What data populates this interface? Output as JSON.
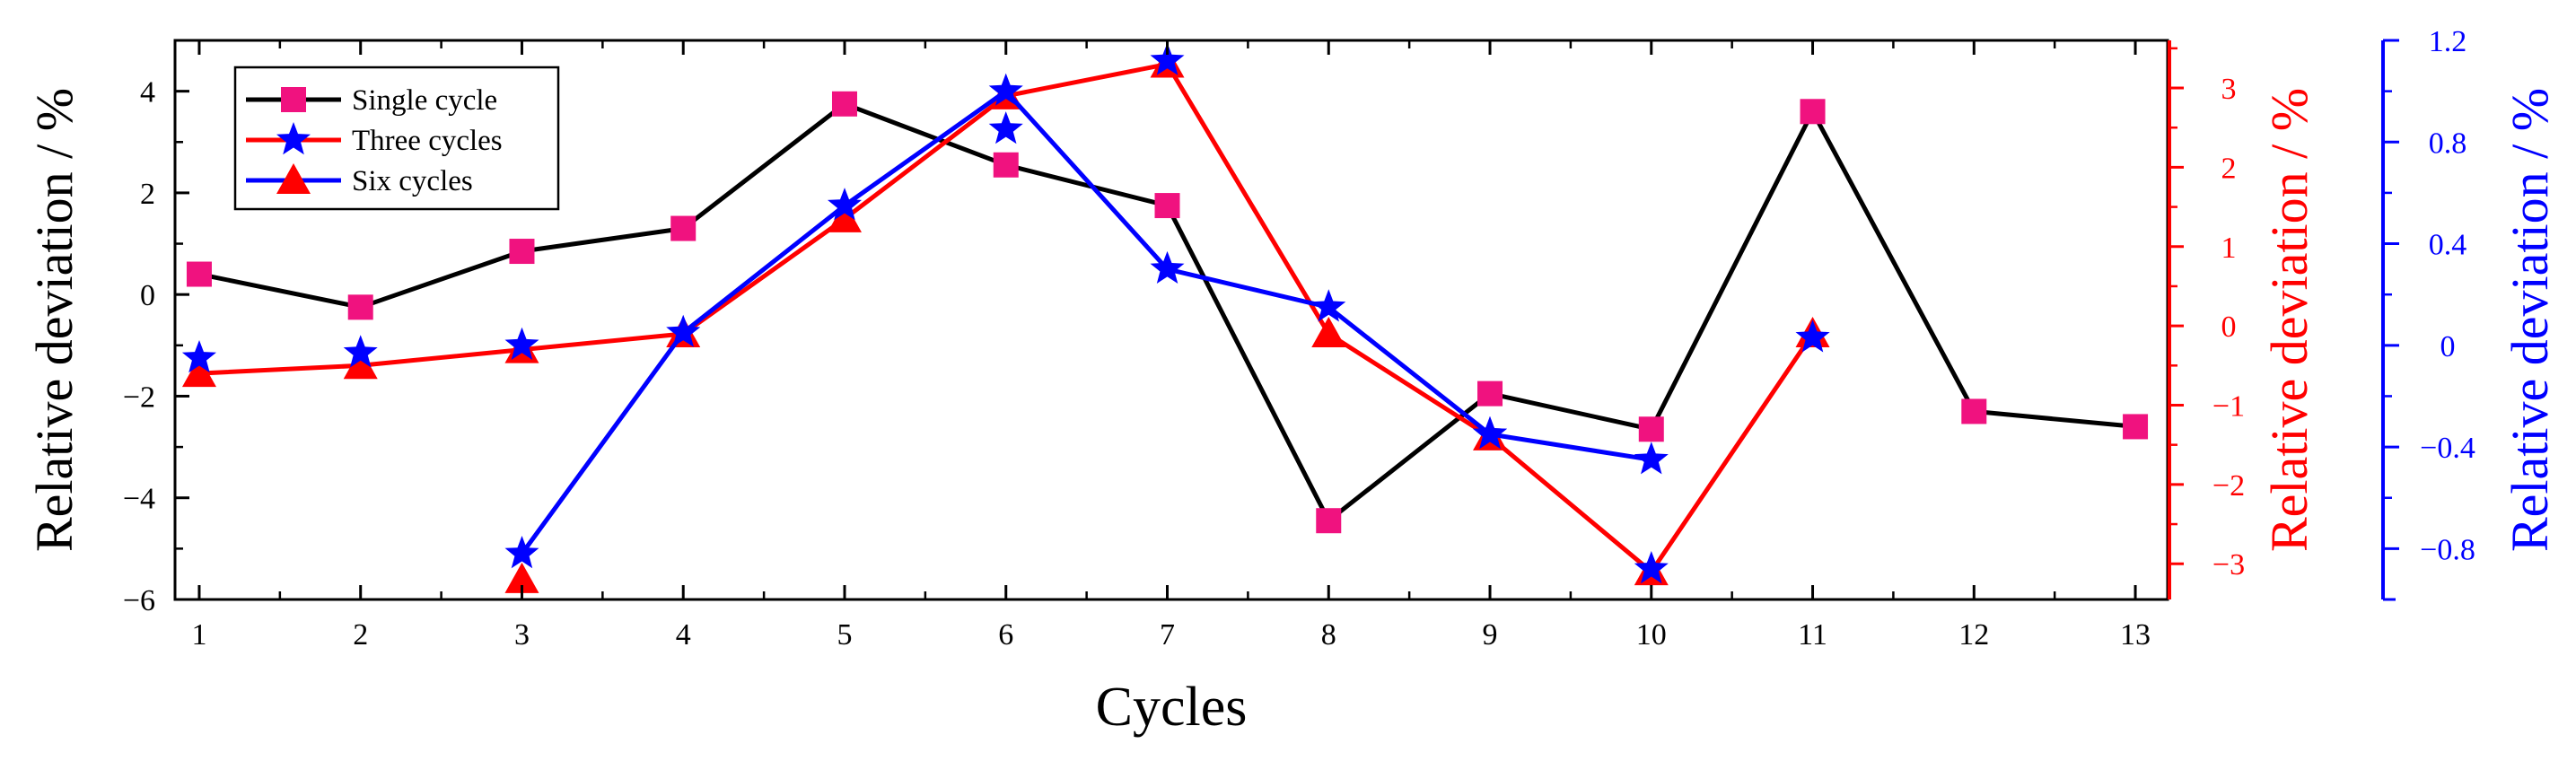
{
  "chart_data": {
    "type": "line",
    "xlabel": "Cycles",
    "x_ticks": [
      1,
      2,
      3,
      4,
      5,
      6,
      7,
      8,
      9,
      10,
      11,
      12,
      13
    ],
    "xlim": [
      0.85,
      13.2
    ],
    "y_axes": {
      "left": {
        "label": "Relative deviation / %",
        "ylim": [
          -6,
          5
        ],
        "ticks": [
          -6,
          -4,
          -2,
          0,
          2,
          4
        ],
        "color": "#000000"
      },
      "red": {
        "label": "Relative deviation / %",
        "ylim": [
          -3.45,
          3.6
        ],
        "ticks": [
          -3,
          -2,
          -1,
          0,
          1,
          2,
          3
        ],
        "color": "#ff0000"
      },
      "blue": {
        "label": "Relative deviation / %",
        "ylim": [
          -1.0,
          1.2
        ],
        "ticks": [
          -0.8,
          -0.4,
          0,
          0.4,
          0.8,
          1.2
        ],
        "color": "#0000ff",
        "tick_labels": [
          "−0.8",
          "−0.4",
          "0",
          "0.4",
          "0.8",
          "1.2"
        ]
      }
    },
    "left_tick_labels": [
      "−6",
      "−4",
      "−2",
      "0",
      "2",
      "4"
    ],
    "red_tick_labels": [
      "−3",
      "−2",
      "−1",
      "0",
      "1",
      "2",
      "3"
    ],
    "legend_position": "top-left",
    "series": [
      {
        "name": "Single cycle",
        "axis": "left",
        "line_color": "#000000",
        "marker": "square",
        "marker_color": "#f0127f",
        "x": [
          1,
          2,
          3,
          4,
          5,
          6,
          7,
          8,
          9,
          10,
          11,
          12,
          13
        ],
        "values": [
          0.4,
          -0.25,
          0.85,
          1.3,
          3.75,
          2.55,
          1.75,
          -4.45,
          -1.95,
          -2.65,
          3.6,
          -2.3,
          -2.6
        ]
      },
      {
        "name": "Three cycles",
        "axis": "red",
        "line_color": "#ff0000",
        "marker": "triangle",
        "marker_color": "#ff0000",
        "x": [
          1,
          2,
          3,
          4,
          5,
          6,
          7,
          8,
          9,
          10,
          11
        ],
        "values": [
          -0.6,
          -0.5,
          -0.3,
          -0.1,
          1.35,
          2.9,
          3.3,
          -0.1,
          -1.4,
          -3.1,
          -0.1
        ]
      },
      {
        "name": "Six cycles",
        "axis": "blue",
        "line_color": "#0000ff",
        "marker": "star",
        "marker_color": "#0000ff",
        "x": [
          3,
          4,
          5,
          6,
          7,
          8,
          9,
          10
        ],
        "values": [
          -0.82,
          0.05,
          0.55,
          1.0,
          0.3,
          0.15,
          -0.35,
          -0.45
        ]
      }
    ],
    "extra_markers": [
      {
        "series": "Three cycles",
        "marker": "triangle",
        "color": "#ff0000",
        "axis": "red",
        "x": 3,
        "y": -3.2
      },
      {
        "series": "Six cycles",
        "marker": "star",
        "color": "#0000ff",
        "axis": "blue",
        "x": 1,
        "y": -0.05
      },
      {
        "series": "Six cycles",
        "marker": "star",
        "color": "#0000ff",
        "axis": "blue",
        "x": 2,
        "y": -0.03
      },
      {
        "series": "Six cycles",
        "marker": "star",
        "color": "#0000ff",
        "axis": "blue",
        "x": 3,
        "y": 0.0
      },
      {
        "series": "Six cycles",
        "marker": "star",
        "color": "#0000ff",
        "axis": "blue",
        "x": 6,
        "y": 0.85
      },
      {
        "series": "Six cycles",
        "marker": "star",
        "color": "#0000ff",
        "axis": "blue",
        "x": 7,
        "y": 1.12
      },
      {
        "series": "Six cycles",
        "marker": "star",
        "color": "#0000ff",
        "axis": "blue",
        "x": 9,
        "y": -0.35
      },
      {
        "series": "Six cycles",
        "marker": "star",
        "color": "#0000ff",
        "axis": "blue",
        "x": 10,
        "y": -0.88
      },
      {
        "series": "Six cycles",
        "marker": "star",
        "color": "#0000ff",
        "axis": "blue",
        "x": 11,
        "y": 0.03
      }
    ]
  }
}
